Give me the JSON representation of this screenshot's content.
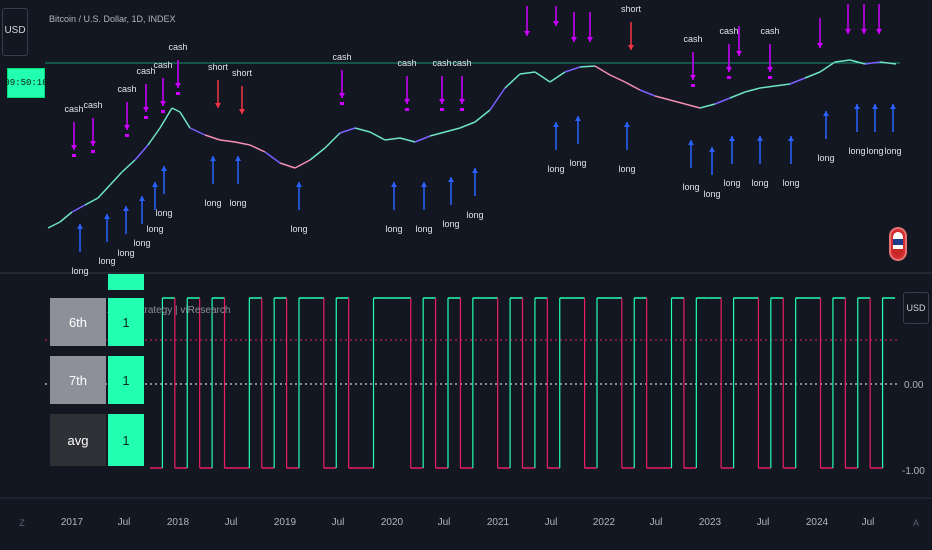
{
  "header": {
    "symbol_title": "Bitcoin / U.S. Dollar, 1D, INDEX",
    "currency_left": "USD",
    "clock": "09:50:10"
  },
  "indicator": {
    "title": "Universal All Asset Strategy | viResearch",
    "currency_right": "USD"
  },
  "y_axis_right": {
    "ticks": [
      "0.00",
      "-1.00"
    ]
  },
  "x_axis": {
    "labels": [
      "2017",
      "Jul",
      "2018",
      "Jul",
      "2019",
      "Jul",
      "2020",
      "Jul",
      "2021",
      "Jul",
      "2022",
      "Jul",
      "2023",
      "Jul",
      "2024",
      "Jul"
    ],
    "left_control": "Z",
    "right_control": "A"
  },
  "table": {
    "rows": [
      {
        "label": "6th",
        "value": "1"
      },
      {
        "label": "7th",
        "value": "1"
      },
      {
        "label": "avg",
        "value": "1"
      }
    ]
  },
  "signals": {
    "up_label": "long",
    "down_labels": [
      "cash",
      "cash",
      "cash",
      "cash",
      "cash",
      "cash",
      "short",
      "short",
      "cash",
      "cash",
      "cash",
      "cash",
      "short",
      "cash",
      "cash",
      "cash"
    ]
  },
  "colors": {
    "long": "#2962ff",
    "cash": "#cc00ff",
    "short": "#f23645",
    "green": "#22ffb0",
    "pink": "#e91e63",
    "bg": "#131722"
  }
}
